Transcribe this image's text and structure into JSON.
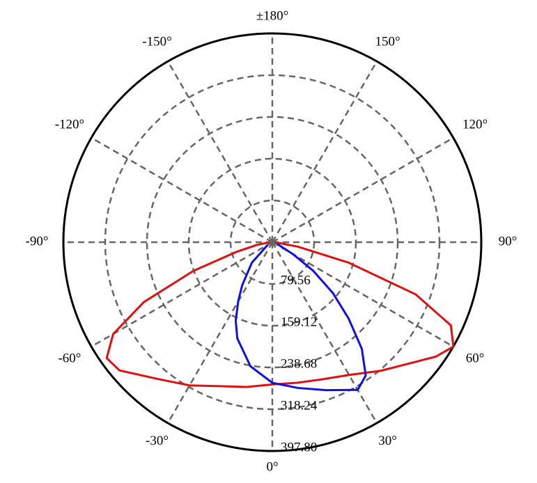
{
  "chart_data": {
    "type": "polar",
    "rlim": [
      0,
      397.8
    ],
    "rticks": [
      79.56,
      159.12,
      238.68,
      318.24,
      {
        "value": 397.8,
        "label": "397.80"
      }
    ],
    "thetaticks": [
      {
        "value": 0,
        "label": "0°"
      },
      {
        "value": 30,
        "label": "30°"
      },
      {
        "value": 60,
        "label": "60°"
      },
      {
        "value": 90,
        "label": "90°"
      },
      {
        "value": 120,
        "label": "120°"
      },
      {
        "value": 150,
        "label": "150°"
      },
      {
        "value": 180,
        "label": "±180°"
      },
      {
        "value": -150,
        "label": "-150°"
      },
      {
        "value": -120,
        "label": "-120°"
      },
      {
        "value": -90,
        "label": "-90°"
      },
      {
        "value": -60,
        "label": "-60°"
      },
      {
        "value": -30,
        "label": "-30°"
      }
    ],
    "grid": true,
    "series": [
      {
        "color": "#e01010",
        "theta": [
          -90,
          -80,
          -75,
          -70,
          -65,
          -60,
          -55,
          -50,
          -40,
          -30,
          -20,
          -10,
          0,
          10,
          20,
          30,
          40,
          50,
          55,
          60,
          65,
          70,
          75,
          80,
          90
        ],
        "values": [
          5,
          30,
          70,
          160,
          270,
          350,
          385,
          380,
          340,
          315,
          292,
          280,
          271,
          272,
          278,
          292,
          320,
          355,
          380,
          398,
          375,
          290,
          150,
          50,
          5
        ]
      },
      {
        "color": "#1010e0",
        "theta": [
          -60,
          -45,
          -35,
          -30,
          -25,
          -20,
          -10,
          0,
          10,
          20,
          30,
          35,
          40,
          45,
          50,
          55,
          60,
          70
        ],
        "values": [
          10,
          55,
          100,
          130,
          165,
          195,
          240,
          268,
          282,
          300,
          325,
          310,
          265,
          205,
          150,
          95,
          45,
          10
        ]
      }
    ]
  }
}
